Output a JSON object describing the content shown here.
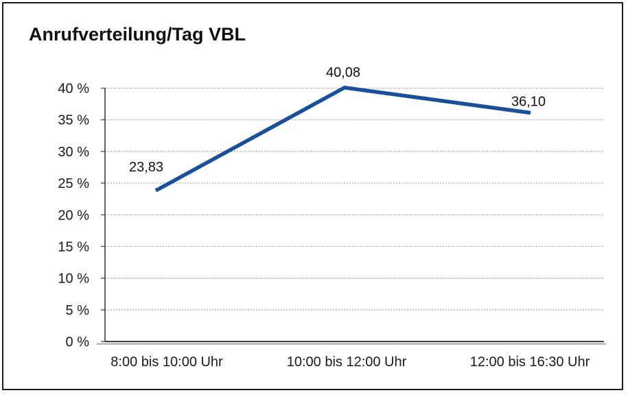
{
  "title": "Anrufverteilung/Tag VBL",
  "chart_data": {
    "type": "line",
    "title": "Anrufverteilung/Tag VBL",
    "categories": [
      "8:00 bis 10:00 Uhr",
      "10:00 bis 12:00 Uhr",
      "12:00 bis 16:30 Uhr"
    ],
    "series": [
      {
        "name": "Anrufverteilung",
        "values": [
          23.83,
          40.08,
          36.1
        ],
        "point_labels": [
          "23,83",
          "40,08",
          "36,10"
        ]
      }
    ],
    "xlabel": "",
    "ylabel": "",
    "ylim": [
      0,
      40
    ],
    "y_tick_step": 5,
    "y_tick_labels": [
      "0 %",
      "5 %",
      "10 %",
      "15 %",
      "20 %",
      "25 %",
      "30 %",
      "35 %",
      "40 %"
    ],
    "grid": "horizontal-dotted",
    "legend": "none",
    "colors": {
      "line": "#1a4f9c",
      "gridline": "#8c8c8c",
      "value_axis": "#3a3a3a",
      "category_axis": "#a6a6a6",
      "text": "#1a1a1a",
      "frame_border": "#1a1a1a",
      "background": "#ffffff"
    }
  }
}
